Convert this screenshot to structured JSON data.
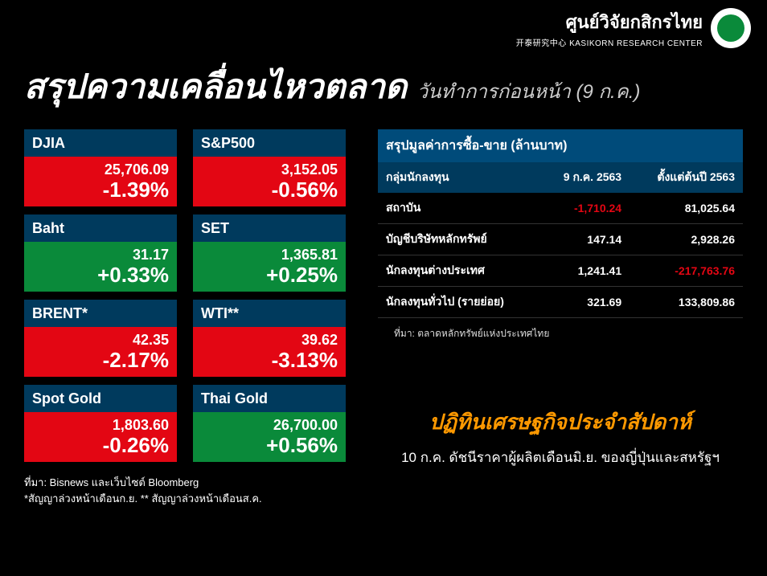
{
  "header": {
    "thai_name": "ศูนย์วิจัยกสิกรไทย",
    "english_sub": "开泰研究中心 KASIKORN RESEARCH CENTER"
  },
  "title": {
    "main": "สรุปความเคลื่อนไหวตลาด",
    "sub": "วันทำการก่อนหน้า (9 ก.ค.)"
  },
  "cards": [
    {
      "label": "DJIA",
      "value": "25,706.09",
      "change": "-1.39%",
      "dir": "down"
    },
    {
      "label": "S&P500",
      "value": "3,152.05",
      "change": "-0.56%",
      "dir": "down"
    },
    {
      "label": "Baht",
      "value": "31.17",
      "change": "+0.33%",
      "dir": "up"
    },
    {
      "label": "SET",
      "value": "1,365.81",
      "change": "+0.25%",
      "dir": "up"
    },
    {
      "label": "BRENT*",
      "value": "42.35",
      "change": "-2.17%",
      "dir": "down"
    },
    {
      "label": "WTI**",
      "value": "39.62",
      "change": "-3.13%",
      "dir": "down"
    },
    {
      "label": "Spot Gold",
      "value": "1,803.60",
      "change": "-0.26%",
      "dir": "down"
    },
    {
      "label": "Thai Gold",
      "value": "26,700.00",
      "change": "+0.56%",
      "dir": "up"
    }
  ],
  "cards_footer": {
    "line1": "ที่มา: Bisnews และเว็บไซต์ Bloomberg",
    "line2": "*สัญญาล่วงหน้าเดือนก.ย. ** สัญญาล่วงหน้าเดือนส.ค."
  },
  "table": {
    "title": "สรุปมูลค่าการซื้อ-ขาย (ล้านบาท)",
    "col1": "กลุ่มนักลงทุน",
    "col2": "9 ก.ค. 2563",
    "col3": "ตั้งแต่ต้นปี 2563",
    "rows": [
      {
        "label": "สถาบัน",
        "v1": "-1,710.24",
        "v1_neg": true,
        "v2": "81,025.64",
        "v2_neg": false
      },
      {
        "label": "บัญชีบริษัทหลักทรัพย์",
        "v1": "147.14",
        "v1_neg": false,
        "v2": "2,928.26",
        "v2_neg": false
      },
      {
        "label": "นักลงทุนต่างประเทศ",
        "v1": "1,241.41",
        "v1_neg": false,
        "v2": "-217,763.76",
        "v2_neg": true
      },
      {
        "label": "นักลงทุนทั่วไป (รายย่อย)",
        "v1": "321.69",
        "v1_neg": false,
        "v2": "133,809.86",
        "v2_neg": false
      }
    ],
    "footer": "ที่มา: ตลาดหลักทรัพย์แห่งประเทศไทย"
  },
  "calendar": {
    "title": "ปฏิทินเศรษฐกิจประจำสัปดาห์",
    "text": "10 ก.ค.  ดัชนีราคาผู้ผลิตเดือนมิ.ย. ของญี่ปุ่นและสหรัฐฯ"
  },
  "colors": {
    "down": "#e30613",
    "up": "#0a8a3a",
    "card_label_bg": "#003a5d",
    "table_header_bg": "#004b7a",
    "accent": "#ff9900"
  }
}
